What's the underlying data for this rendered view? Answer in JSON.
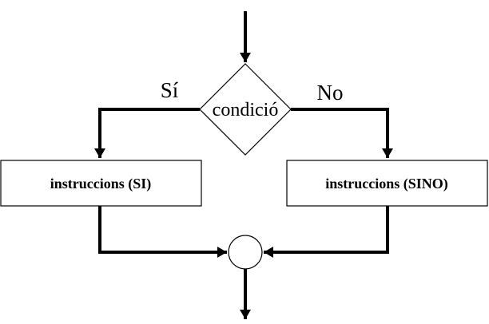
{
  "diagram": {
    "type": "flowchart-if-else",
    "decision": {
      "label": "condició"
    },
    "branch_yes": {
      "label": "Sí"
    },
    "branch_no": {
      "label": "No"
    },
    "box_yes": {
      "label": "instruccions (SI)"
    },
    "box_no": {
      "label": "instruccions (SINO)"
    },
    "colors": {
      "stroke": "#000000",
      "fill": "#ffffff",
      "text": "#000000"
    }
  }
}
